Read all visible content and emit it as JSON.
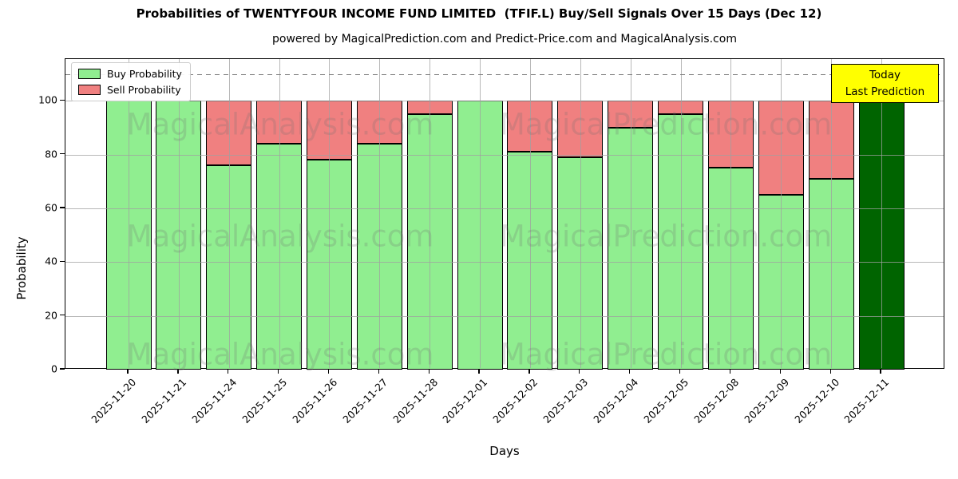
{
  "chart_data": {
    "type": "bar",
    "stacked": true,
    "title": "Probabilities of TWENTYFOUR INCOME FUND LIMITED  (TFIF.L) Buy/Sell Signals Over 15 Days (Dec 12)",
    "subtitle": "powered by MagicalPrediction.com and Predict-Price.com and MagicalAnalysis.com",
    "xlabel": "Days",
    "ylabel": "Probability",
    "categories": [
      "2025-11-20",
      "2025-11-21",
      "2025-11-24",
      "2025-11-25",
      "2025-11-26",
      "2025-11-27",
      "2025-11-28",
      "2025-12-01",
      "2025-12-02",
      "2025-12-03",
      "2025-12-04",
      "2025-12-05",
      "2025-12-08",
      "2025-12-09",
      "2025-12-10",
      "2025-12-11"
    ],
    "series": [
      {
        "name": "Buy Probability",
        "color": "#90EE90",
        "values": [
          100,
          100,
          76,
          84,
          78,
          84,
          95,
          100,
          81,
          79,
          90,
          95,
          75,
          65,
          71,
          100
        ]
      },
      {
        "name": "Sell Probability",
        "color": "#F08080",
        "values": [
          0,
          0,
          24,
          16,
          22,
          16,
          5,
          0,
          19,
          21,
          10,
          5,
          25,
          35,
          29,
          0
        ]
      }
    ],
    "last_bar_color": "#006400",
    "bar_edge_color": "#000000",
    "yticks": [
      0,
      20,
      40,
      60,
      80,
      100
    ],
    "ylim": [
      0,
      115.5
    ],
    "dashed_line_y": 110,
    "grid": true,
    "legend_position": "upper-left",
    "annotation": {
      "line1": "Today",
      "line2": "Last Prediction",
      "bg": "#ffff00"
    },
    "watermark_left": "MagicalAnalysis.com",
    "watermark_right": "MagicalPrediction.com"
  }
}
